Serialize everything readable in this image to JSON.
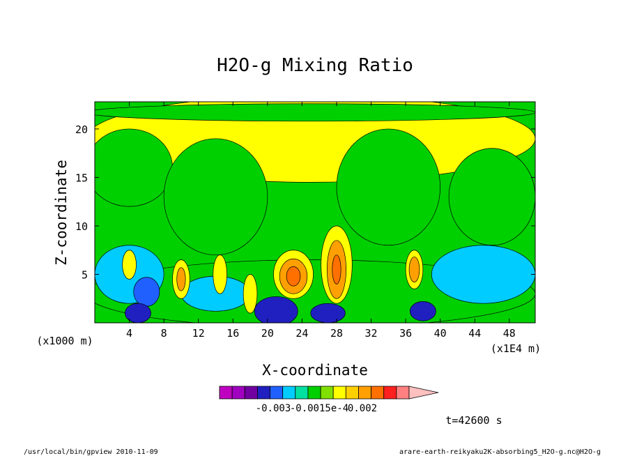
{
  "chart_data": {
    "type": "heatmap",
    "title": "H2O-g Mixing Ratio",
    "xlabel": "X-coordinate",
    "ylabel": "Z-coordinate",
    "x_unit_label": "(x1000 m)",
    "x_scale_label": "(x1E4 m)",
    "x_ticks": [
      4,
      8,
      12,
      16,
      20,
      24,
      28,
      32,
      36,
      40,
      44,
      48
    ],
    "y_ticks": [
      5,
      10,
      15,
      20
    ],
    "xlim": [
      0,
      51
    ],
    "ylim": [
      0,
      22.8
    ],
    "colorbar": {
      "colors": [
        "#c000c0",
        "#a000c0",
        "#7000a0",
        "#2020c0",
        "#2060ff",
        "#00ccff",
        "#00e0a0",
        "#00d000",
        "#80e000",
        "#ffff00",
        "#ffd000",
        "#ffa000",
        "#ff7000",
        "#ff2020",
        "#ff8080",
        "#ffc0c0"
      ],
      "tick_labels": [
        "-0.003",
        "-0.0015e-4",
        "0.002"
      ]
    },
    "regions": [
      {
        "level": 9,
        "cx": 25,
        "cy": 19,
        "rx": 26,
        "ry": 4.5
      },
      {
        "level": 7,
        "cx": 4,
        "cy": 16,
        "rx": 5,
        "ry": 4
      },
      {
        "level": 7,
        "cx": 14,
        "cy": 13,
        "rx": 6,
        "ry": 6
      },
      {
        "level": 7,
        "cx": 34,
        "cy": 14,
        "rx": 6,
        "ry": 6
      },
      {
        "level": 7,
        "cx": 46,
        "cy": 13,
        "rx": 5,
        "ry": 5
      },
      {
        "level": 7,
        "cx": 25,
        "cy": 3,
        "rx": 26,
        "ry": 3.5
      },
      {
        "level": 7,
        "cx": 25,
        "cy": 21.7,
        "rx": 26,
        "ry": 0.9
      },
      {
        "level": 5,
        "cx": 4,
        "cy": 5,
        "rx": 4,
        "ry": 3
      },
      {
        "level": 5,
        "cx": 45,
        "cy": 5,
        "rx": 6,
        "ry": 3
      },
      {
        "level": 5,
        "cx": 14,
        "cy": 3,
        "rx": 4,
        "ry": 1.8
      },
      {
        "level": 4,
        "cx": 6,
        "cy": 3.2,
        "rx": 1.5,
        "ry": 1.5
      },
      {
        "level": 3,
        "cx": 5,
        "cy": 1,
        "rx": 1.5,
        "ry": 1
      },
      {
        "level": 3,
        "cx": 21,
        "cy": 1.2,
        "rx": 2.5,
        "ry": 1.5
      },
      {
        "level": 3,
        "cx": 27,
        "cy": 1,
        "rx": 2,
        "ry": 1
      },
      {
        "level": 3,
        "cx": 38,
        "cy": 1.2,
        "rx": 1.5,
        "ry": 1
      },
      {
        "level": 9,
        "cx": 4,
        "cy": 6,
        "rx": 0.8,
        "ry": 1.5
      },
      {
        "level": 9,
        "cx": 10,
        "cy": 4.5,
        "rx": 1,
        "ry": 2
      },
      {
        "level": 11,
        "cx": 10,
        "cy": 4.5,
        "rx": 0.5,
        "ry": 1.2
      },
      {
        "level": 9,
        "cx": 14.5,
        "cy": 5,
        "rx": 0.8,
        "ry": 2
      },
      {
        "level": 9,
        "cx": 18,
        "cy": 3,
        "rx": 0.8,
        "ry": 2
      },
      {
        "level": 9,
        "cx": 23,
        "cy": 5,
        "rx": 2.3,
        "ry": 2.5
      },
      {
        "level": 11,
        "cx": 23,
        "cy": 4.8,
        "rx": 1.6,
        "ry": 1.8
      },
      {
        "level": 12,
        "cx": 23,
        "cy": 4.8,
        "rx": 0.8,
        "ry": 1
      },
      {
        "level": 9,
        "cx": 28,
        "cy": 6,
        "rx": 1.8,
        "ry": 4
      },
      {
        "level": 11,
        "cx": 28,
        "cy": 5.5,
        "rx": 1.1,
        "ry": 3
      },
      {
        "level": 12,
        "cx": 28,
        "cy": 5.5,
        "rx": 0.5,
        "ry": 1.5
      },
      {
        "level": 9,
        "cx": 37,
        "cy": 5.5,
        "rx": 1,
        "ry": 2
      },
      {
        "level": 11,
        "cx": 37,
        "cy": 5.5,
        "rx": 0.6,
        "ry": 1.3
      }
    ]
  },
  "footer": {
    "time_label": "t=42600 s",
    "program_info": "/usr/local/bin/gpview 2010-11-09",
    "file_info": "arare-earth-reikyaku2K-absorbing5_H2O-g.nc@H2O-g"
  }
}
